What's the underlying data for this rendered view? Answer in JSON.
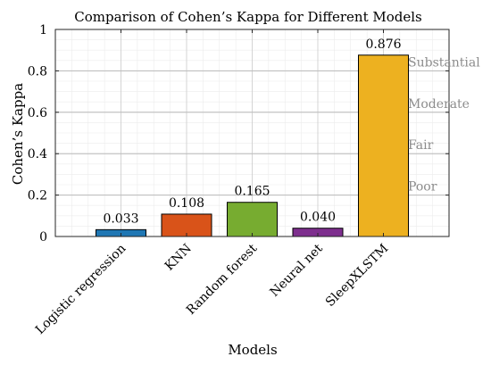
{
  "chart_data": {
    "type": "bar",
    "title": "Comparison of Cohen’s Kappa for Different Models",
    "xlabel": "Models",
    "ylabel": "Cohen’s Kappa",
    "ylim": [
      0,
      1
    ],
    "yticks": [
      0,
      0.2,
      0.4,
      0.6,
      0.8,
      1
    ],
    "ytick_labels": [
      "0",
      "0.2",
      "0.4",
      "0.6",
      "0.8",
      "1"
    ],
    "grid": true,
    "categories": [
      "Logistic regression",
      "KNN",
      "Random forest",
      "Neural net",
      "SleepXLSTM"
    ],
    "values": [
      0.033,
      0.108,
      0.165,
      0.04,
      0.876
    ],
    "value_labels": [
      "0.033",
      "0.108",
      "0.165",
      "0.040",
      "0.876"
    ],
    "colors": [
      "#1f77b4",
      "#d95319",
      "#77ac30",
      "#7e2f8e",
      "#edb120"
    ],
    "annotations": [
      {
        "text": "Substantial",
        "y": 0.8
      },
      {
        "text": "Moderate",
        "y": 0.6
      },
      {
        "text": "Fair",
        "y": 0.4
      },
      {
        "text": "Poor",
        "y": 0.2
      }
    ]
  }
}
